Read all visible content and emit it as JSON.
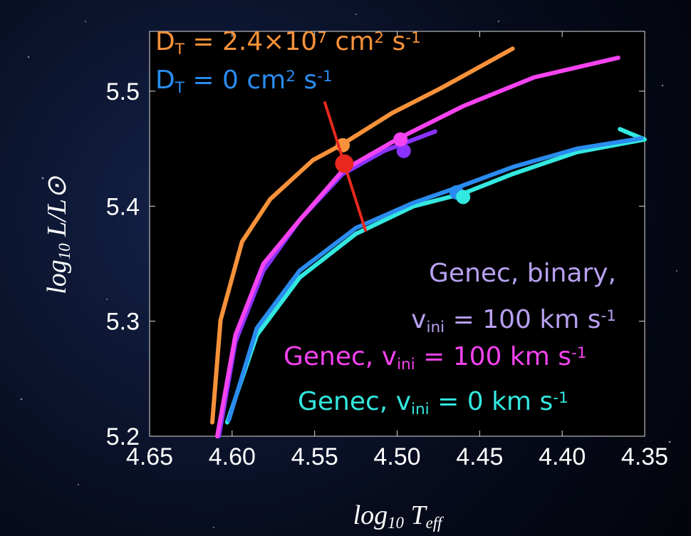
{
  "chart_data": {
    "type": "line",
    "xlabel": [
      {
        "text": "log"
      },
      {
        "text": "10",
        "style": "sub"
      },
      {
        "text": " T"
      },
      {
        "text": "eff",
        "style": "sub"
      }
    ],
    "ylabel": [
      {
        "text": "log"
      },
      {
        "text": "10",
        "style": "sub"
      },
      {
        "text": " L/L⊙"
      }
    ],
    "xlim": [
      4.65,
      4.35
    ],
    "ylim": [
      5.2,
      5.552
    ],
    "xticks": [
      4.65,
      {
        "value": 4.6,
        "label": "4.60"
      },
      4.55,
      {
        "value": 4.5,
        "label": "4.50"
      },
      4.45,
      {
        "value": 4.4,
        "label": "4.40"
      },
      4.35
    ],
    "yticks": [
      5.2,
      5.3,
      5.4,
      5.5
    ],
    "series": [
      {
        "color": "#f7923a",
        "label": [
          [
            {
              "text": "D"
            },
            {
              "text": "T",
              "style": "sub"
            },
            {
              "text": " = 2.4×10"
            },
            {
              "text": "7",
              "style": "sup"
            },
            {
              "text": " cm"
            },
            {
              "text": "2",
              "style": "sup"
            },
            {
              "text": " s"
            },
            {
              "text": "-1",
              "style": "sup"
            }
          ]
        ],
        "x": [
          4.612,
          4.607,
          4.594,
          4.577,
          4.551,
          4.533,
          4.503,
          4.473,
          4.43
        ],
        "y": [
          5.212,
          5.301,
          5.369,
          5.406,
          5.44,
          5.454,
          5.481,
          5.503,
          5.537
        ],
        "marker": {
          "x": 4.533,
          "y": 5.453
        }
      },
      {
        "color": "#2a8cf0",
        "label": [
          [
            {
              "text": "D"
            },
            {
              "text": "T",
              "style": "sub"
            },
            {
              "text": " = 0 cm"
            },
            {
              "text": "2",
              "style": "sup"
            },
            {
              "text": " s"
            },
            {
              "text": "-1",
              "style": "sup"
            }
          ]
        ],
        "x": [
          4.602,
          4.585,
          4.559,
          4.525,
          4.49,
          4.464,
          4.43,
          4.391,
          4.352
        ],
        "y": [
          5.214,
          5.294,
          5.344,
          5.381,
          5.403,
          5.416,
          5.434,
          5.45,
          5.459
        ],
        "marker": {
          "x": 4.464,
          "y": 5.412
        }
      },
      {
        "color": "#8a33ff",
        "label_color": "#b8a0f0",
        "label": [
          [
            {
              "text": "Genec, binary,"
            }
          ],
          [
            {
              "text": "v"
            },
            {
              "text": "ini",
              "style": "sub"
            },
            {
              "text": " = 100 km s"
            },
            {
              "text": "-1",
              "style": "sup"
            }
          ]
        ],
        "x": [
          4.608,
          4.598,
          4.581,
          4.559,
          4.533,
          4.508,
          4.477
        ],
        "y": [
          5.2,
          5.282,
          5.344,
          5.388,
          5.428,
          5.448,
          5.465
        ],
        "marker": {
          "x": 4.496,
          "y": 5.448
        }
      },
      {
        "color": "#f543f0",
        "label": [
          [
            {
              "text": "Genec, v"
            },
            {
              "text": "ini",
              "style": "sub"
            },
            {
              "text": " = 100 km s"
            },
            {
              "text": "-1",
              "style": "sup"
            }
          ]
        ],
        "x": [
          4.609,
          4.598,
          4.581,
          4.559,
          4.533,
          4.499,
          4.46,
          4.417,
          4.366
        ],
        "y": [
          5.2,
          5.288,
          5.35,
          5.388,
          5.431,
          5.459,
          5.487,
          5.512,
          5.529
        ],
        "marker": {
          "x": 4.498,
          "y": 5.458
        }
      },
      {
        "color": "#33e8e0",
        "label": [
          [
            {
              "text": "Genec, v"
            },
            {
              "text": "ini",
              "style": "sub"
            },
            {
              "text": " = 0 km s"
            },
            {
              "text": "-1",
              "style": "sup"
            }
          ]
        ],
        "x": [
          4.603,
          4.585,
          4.559,
          4.525,
          4.49,
          4.46,
          4.43,
          4.391,
          4.35,
          4.365
        ],
        "y": [
          5.212,
          5.288,
          5.338,
          5.376,
          5.4,
          5.411,
          5.428,
          5.447,
          5.458,
          5.467
        ],
        "marker": {
          "x": 4.46,
          "y": 5.408
        }
      }
    ],
    "observation": {
      "color": "#e8281e",
      "x": 4.532,
      "y": 5.437,
      "error_line": {
        "x": [
          4.544,
          4.519
        ],
        "y": [
          5.491,
          5.378
        ]
      }
    }
  }
}
